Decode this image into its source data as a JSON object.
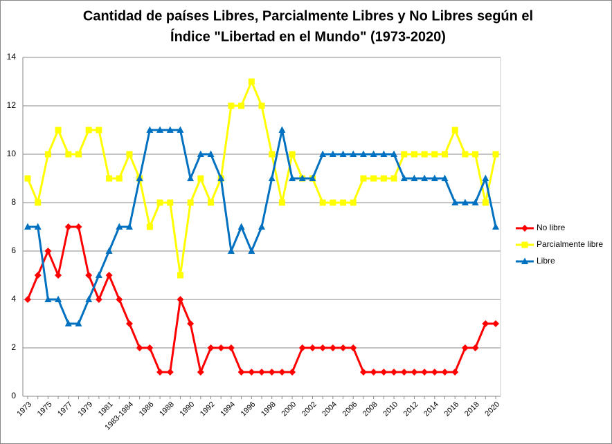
{
  "chart_data": {
    "type": "line",
    "title": "Cantidad de países Libres, Parcialmente Libres y No Libres según el",
    "subtitle": "Índice \"Libertad en el Mundo\" (1973-2020)",
    "categories": [
      "1973",
      null,
      "1975",
      null,
      "1977",
      null,
      "1979",
      null,
      "1981",
      null,
      "1983-1984",
      null,
      "1986",
      null,
      "1988",
      null,
      "1990",
      null,
      "1992",
      null,
      "1994",
      null,
      "1996",
      null,
      "1998",
      null,
      "2000",
      null,
      "2002",
      null,
      "2004",
      null,
      "2006",
      null,
      "2008",
      null,
      "2010",
      null,
      "2012",
      null,
      "2014",
      null,
      "2016",
      null,
      "2018",
      null,
      "2020"
    ],
    "series": [
      {
        "name": "No libre",
        "color": "#ff0000",
        "marker": "diamond",
        "values": [
          4,
          5,
          6,
          5,
          7,
          7,
          5,
          4,
          5,
          4,
          3,
          2,
          2,
          1,
          1,
          4,
          3,
          1,
          2,
          2,
          2,
          1,
          1,
          1,
          1,
          1,
          1,
          2,
          2,
          2,
          2,
          2,
          2,
          1,
          1,
          1,
          1,
          1,
          1,
          1,
          1,
          1,
          1,
          2,
          2,
          3,
          3
        ]
      },
      {
        "name": "Parcialmente libre",
        "color": "#ffff00",
        "marker": "square",
        "values": [
          9,
          8,
          10,
          11,
          10,
          10,
          11,
          11,
          9,
          9,
          10,
          9,
          7,
          8,
          8,
          5,
          8,
          9,
          8,
          9,
          12,
          12,
          13,
          12,
          10,
          8,
          10,
          9,
          9,
          8,
          8,
          8,
          8,
          9,
          9,
          9,
          9,
          10,
          10,
          10,
          10,
          10,
          11,
          10,
          10,
          8,
          10
        ]
      },
      {
        "name": "Libre",
        "color": "#0070c0",
        "marker": "triangle",
        "values": [
          7,
          7,
          4,
          4,
          3,
          3,
          4,
          5,
          6,
          7,
          7,
          9,
          11,
          11,
          11,
          11,
          9,
          10,
          10,
          9,
          6,
          7,
          6,
          7,
          9,
          11,
          9,
          9,
          9,
          10,
          10,
          10,
          10,
          10,
          10,
          10,
          10,
          9,
          9,
          9,
          9,
          9,
          8,
          8,
          8,
          9,
          7
        ]
      }
    ],
    "ylim": [
      0,
      14
    ],
    "yticks": [
      0,
      2,
      4,
      6,
      8,
      10,
      12,
      14
    ],
    "grid": true,
    "legend": "right"
  }
}
